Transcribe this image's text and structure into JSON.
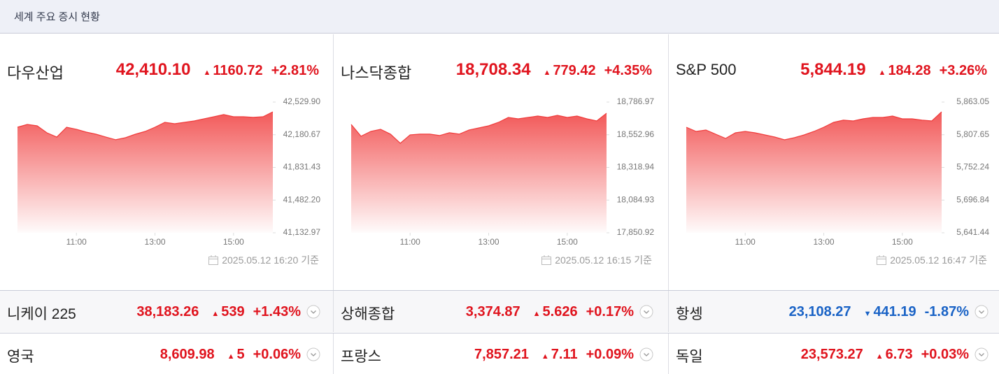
{
  "header": {
    "title": "세계 주요 증시 현황"
  },
  "panels": [
    {
      "name": "다우산업",
      "value": "42,410.10",
      "change": "1160.72",
      "rate": "+2.81%",
      "direction": "up",
      "color": "#e0141e",
      "timestamp": "2025.05.12 16:20",
      "suffix": "기준"
    },
    {
      "name": "나스닥종합",
      "value": "18,708.34",
      "change": "779.42",
      "rate": "+4.35%",
      "direction": "up",
      "color": "#e0141e",
      "timestamp": "2025.05.12 16:15",
      "suffix": "기준"
    },
    {
      "name": "S&P 500",
      "value": "5,844.19",
      "change": "184.28",
      "rate": "+3.26%",
      "direction": "up",
      "color": "#e0141e",
      "timestamp": "2025.05.12 16:47",
      "suffix": "기준"
    }
  ],
  "chart_data": [
    {
      "type": "line",
      "color": "#f03c3c",
      "x": [
        9.5,
        9.75,
        10,
        10.25,
        10.5,
        10.75,
        11,
        11.25,
        11.5,
        11.75,
        12,
        12.25,
        12.5,
        12.75,
        13,
        13.25,
        13.5,
        13.75,
        14,
        14.25,
        14.5,
        14.75,
        15,
        15.25,
        15.5,
        15.75,
        16
      ],
      "values": [
        42261,
        42291,
        42276,
        42201,
        42156,
        42261,
        42239,
        42209,
        42186,
        42156,
        42127,
        42149,
        42186,
        42216,
        42261,
        42313,
        42298,
        42313,
        42328,
        42351,
        42373,
        42396,
        42373,
        42373,
        42366,
        42373,
        42425
      ],
      "xlim": [
        9.5,
        16
      ],
      "xticks": [
        {
          "value": 11,
          "label": "11:00"
        },
        {
          "value": 13,
          "label": "13:00"
        },
        {
          "value": 15,
          "label": "15:00"
        }
      ],
      "ylim": [
        41132.97,
        42529.9
      ],
      "yticks": [
        {
          "value": 42529.9,
          "label": "42,529.90"
        },
        {
          "value": 42180.67,
          "label": "42,180.67"
        },
        {
          "value": 41831.43,
          "label": "41,831.43"
        },
        {
          "value": 41482.2,
          "label": "41,482.20"
        },
        {
          "value": 41132.97,
          "label": "41,132.97"
        }
      ]
    },
    {
      "type": "line",
      "color": "#f03c3c",
      "x": [
        9.5,
        9.75,
        10,
        10.25,
        10.5,
        10.75,
        11,
        11.25,
        11.5,
        11.75,
        12,
        12.25,
        12.5,
        12.75,
        13,
        13.25,
        13.5,
        13.75,
        14,
        14.25,
        14.5,
        14.75,
        15,
        15.25,
        15.5,
        15.75,
        16
      ],
      "values": [
        18627,
        18542,
        18577,
        18592,
        18557,
        18492,
        18552,
        18557,
        18557,
        18547,
        18567,
        18557,
        18587,
        18602,
        18617,
        18642,
        18677,
        18667,
        18677,
        18687,
        18677,
        18692,
        18677,
        18687,
        18667,
        18652,
        18707
      ],
      "xlim": [
        9.5,
        16
      ],
      "xticks": [
        {
          "value": 11,
          "label": "11:00"
        },
        {
          "value": 13,
          "label": "13:00"
        },
        {
          "value": 15,
          "label": "15:00"
        }
      ],
      "ylim": [
        17850.92,
        18786.97
      ],
      "yticks": [
        {
          "value": 18786.97,
          "label": "18,786.97"
        },
        {
          "value": 18552.96,
          "label": "18,552.96"
        },
        {
          "value": 18318.94,
          "label": "18,318.94"
        },
        {
          "value": 18084.93,
          "label": "18,084.93"
        },
        {
          "value": 17850.92,
          "label": "17,850.92"
        }
      ]
    },
    {
      "type": "line",
      "color": "#f03c3c",
      "x": [
        9.5,
        9.75,
        10,
        10.25,
        10.5,
        10.75,
        11,
        11.25,
        11.5,
        11.75,
        12,
        12.25,
        12.5,
        12.75,
        13,
        13.25,
        13.5,
        13.75,
        14,
        14.25,
        14.5,
        14.75,
        15,
        15.25,
        15.5,
        15.75,
        16
      ],
      "values": [
        5820.4,
        5813.3,
        5815.7,
        5808.5,
        5801.4,
        5810.9,
        5813.3,
        5810.9,
        5807.4,
        5803.8,
        5799.1,
        5802.6,
        5807.4,
        5813.3,
        5820.4,
        5828.7,
        5832.3,
        5831.1,
        5834.6,
        5837.0,
        5837.0,
        5839.4,
        5834.6,
        5834.6,
        5832.3,
        5831.1,
        5846.5
      ],
      "xlim": [
        9.5,
        16
      ],
      "xticks": [
        {
          "value": 11,
          "label": "11:00"
        },
        {
          "value": 13,
          "label": "13:00"
        },
        {
          "value": 15,
          "label": "15:00"
        }
      ],
      "ylim": [
        5641.44,
        5863.05
      ],
      "yticks": [
        {
          "value": 5863.05,
          "label": "5,863.05"
        },
        {
          "value": 5807.65,
          "label": "5,807.65"
        },
        {
          "value": 5752.24,
          "label": "5,752.24"
        },
        {
          "value": 5696.84,
          "label": "5,696.84"
        },
        {
          "value": 5641.44,
          "label": "5,641.44"
        }
      ]
    }
  ],
  "rows": [
    [
      {
        "name": "니케이 225",
        "value": "38,183.26",
        "change": "539",
        "rate": "+1.43%",
        "direction": "up",
        "color": "#e0141e"
      },
      {
        "name": "상해종합",
        "value": "3,374.87",
        "change": "5.626",
        "rate": "+0.17%",
        "direction": "up",
        "color": "#e0141e"
      },
      {
        "name": "항셍",
        "value": "23,108.27",
        "change": "441.19",
        "rate": "-1.87%",
        "direction": "down",
        "color": "#1a63c6"
      }
    ],
    [
      {
        "name": "영국",
        "value": "8,609.98",
        "change": "5",
        "rate": "+0.06%",
        "direction": "up",
        "color": "#e0141e"
      },
      {
        "name": "프랑스",
        "value": "7,857.21",
        "change": "7.11",
        "rate": "+0.09%",
        "direction": "up",
        "color": "#e0141e"
      },
      {
        "name": "독일",
        "value": "23,573.27",
        "change": "6.73",
        "rate": "+0.03%",
        "direction": "up",
        "color": "#e0141e"
      }
    ]
  ]
}
